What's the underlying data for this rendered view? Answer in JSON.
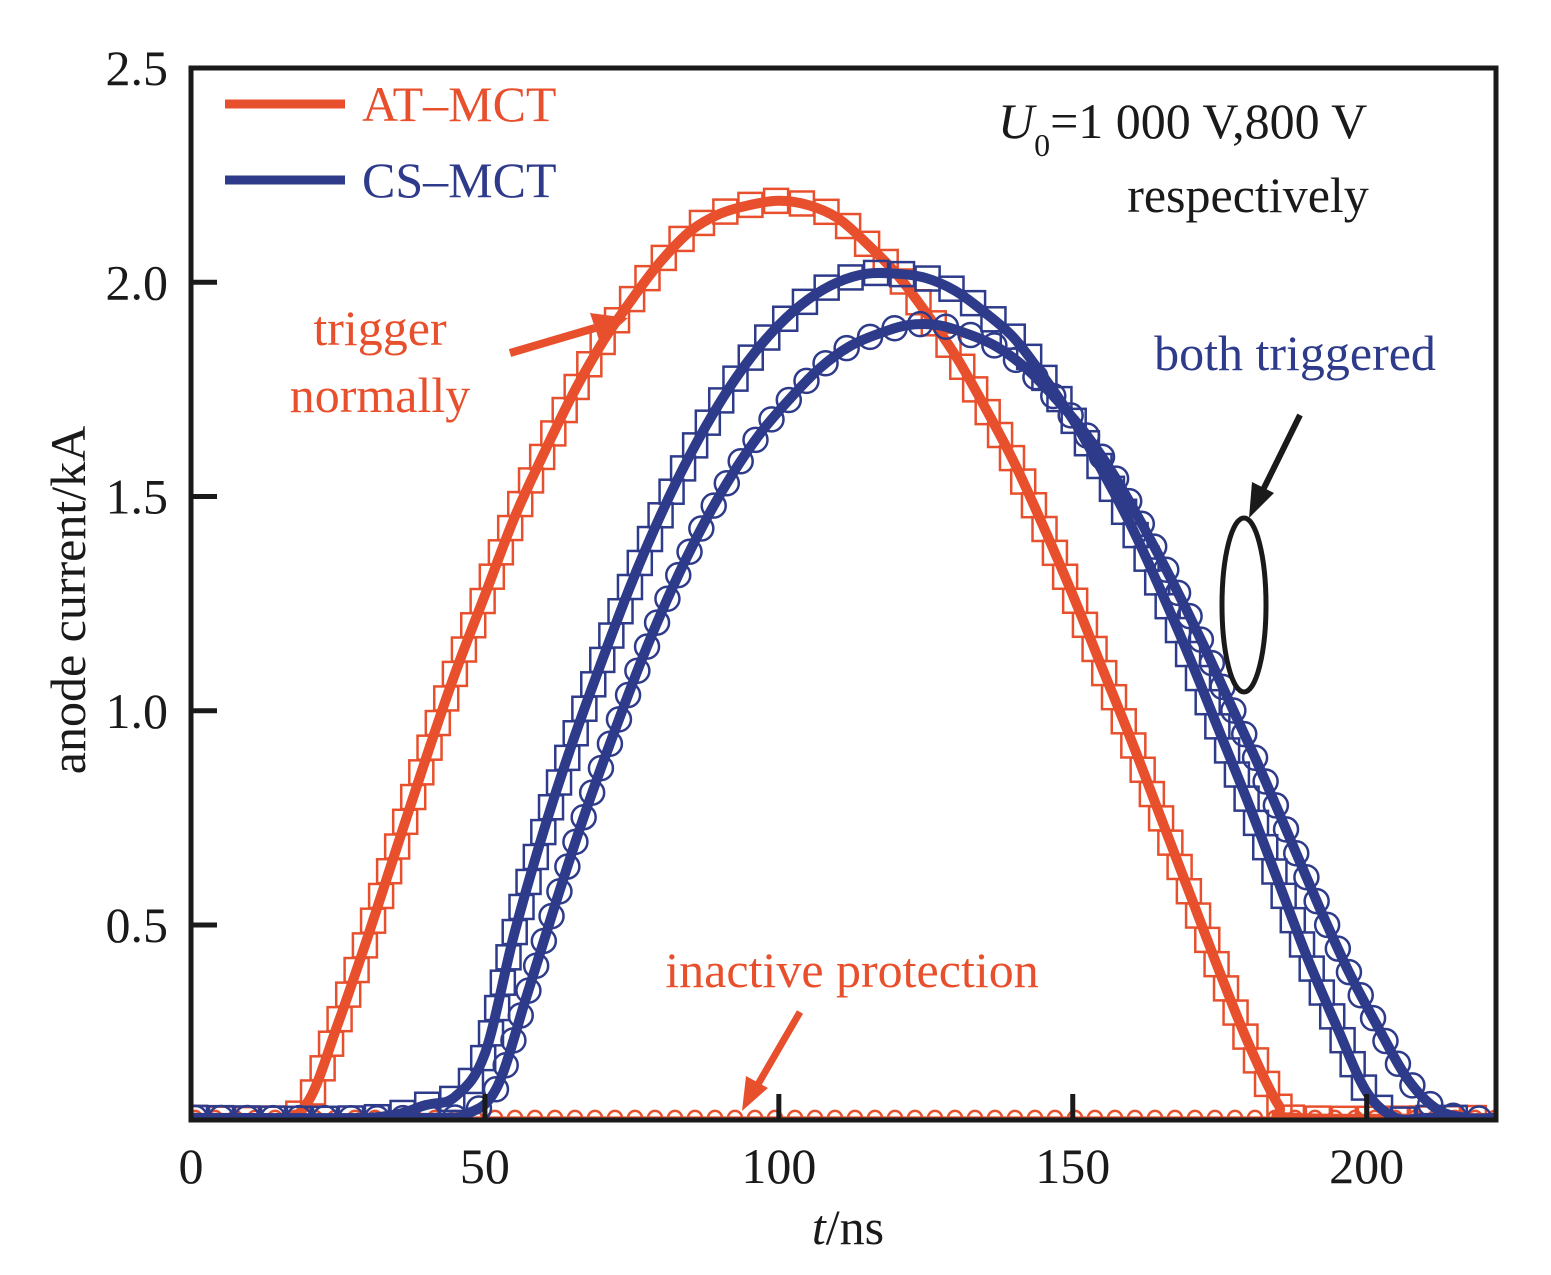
{
  "chart_data": {
    "type": "line",
    "xlabel_italic": "t",
    "xlabel_unit": "/ns",
    "ylabel": "anode current/kA",
    "xlim": [
      0,
      222
    ],
    "ylim": [
      0.045,
      2.5
    ],
    "xticks": [
      0,
      50,
      100,
      150,
      200
    ],
    "yticks": [
      0.5,
      1.0,
      1.5,
      2.0,
      2.5
    ],
    "ytick_labels": [
      "0.5",
      "1.0",
      "1.5",
      "2.0",
      "2.5"
    ],
    "legend": [
      {
        "label": "AT–MCT",
        "color": "#e8502d"
      },
      {
        "label": "CS–MCT",
        "color": "#2e3b8a"
      }
    ],
    "condition": {
      "var": "U",
      "sub": "0",
      "text": "=1 000 V,800 V",
      "line2": "respectively"
    },
    "annotations": {
      "trigger": [
        "trigger",
        "normally"
      ],
      "both": "both triggered",
      "inactive": "inactive protection"
    },
    "series": [
      {
        "name": "AT–MCT",
        "color": "#e8502d",
        "marker": "square",
        "x": [
          0,
          15,
          20,
          25,
          30,
          35,
          40,
          45,
          50,
          55,
          60,
          65,
          70,
          75,
          80,
          85,
          90,
          95,
          100,
          105,
          110,
          115,
          120,
          125,
          130,
          135,
          140,
          145,
          150,
          155,
          160,
          165,
          170,
          175,
          180,
          185,
          188,
          222
        ],
        "y": [
          0.05,
          0.05,
          0.09,
          0.27,
          0.47,
          0.68,
          0.89,
          1.09,
          1.27,
          1.45,
          1.6,
          1.74,
          1.86,
          1.96,
          2.05,
          2.12,
          2.16,
          2.18,
          2.19,
          2.18,
          2.15,
          2.09,
          2.02,
          1.93,
          1.83,
          1.71,
          1.58,
          1.43,
          1.27,
          1.1,
          0.93,
          0.75,
          0.57,
          0.39,
          0.22,
          0.08,
          0.05,
          0.05
        ]
      },
      {
        "name": "inactive protection",
        "color": "#e8502d",
        "marker": "circle",
        "x": [
          0,
          222
        ],
        "y": [
          0.05,
          0.05
        ]
      },
      {
        "name": "",
        "color": "#2e3b8a",
        "marker": "square",
        "x": [
          0,
          30,
          40,
          45,
          50,
          55,
          60,
          65,
          70,
          75,
          80,
          85,
          90,
          95,
          100,
          105,
          110,
          115,
          120,
          125,
          130,
          135,
          140,
          145,
          150,
          155,
          160,
          165,
          170,
          175,
          180,
          185,
          190,
          195,
          200,
          205,
          210,
          215
        ],
        "y": [
          0.05,
          0.05,
          0.08,
          0.1,
          0.2,
          0.48,
          0.72,
          0.93,
          1.12,
          1.3,
          1.46,
          1.6,
          1.72,
          1.82,
          1.9,
          1.96,
          2.0,
          2.02,
          2.02,
          2.01,
          1.98,
          1.93,
          1.87,
          1.78,
          1.68,
          1.56,
          1.43,
          1.28,
          1.12,
          0.95,
          0.78,
          0.6,
          0.42,
          0.26,
          0.11,
          0.05,
          0.05,
          0.05
        ]
      },
      {
        "name": "",
        "color": "#2e3b8a",
        "marker": "circle",
        "x": [
          0,
          40,
          47,
          52,
          57,
          62,
          67,
          72,
          77,
          82,
          87,
          92,
          97,
          102,
          107,
          112,
          117,
          122,
          127,
          132,
          137,
          142,
          147,
          152,
          157,
          162,
          167,
          172,
          177,
          182,
          187,
          192,
          197,
          202,
          207,
          212,
          217,
          222
        ],
        "y": [
          0.05,
          0.05,
          0.06,
          0.12,
          0.33,
          0.55,
          0.76,
          0.95,
          1.13,
          1.29,
          1.43,
          1.55,
          1.65,
          1.73,
          1.8,
          1.85,
          1.88,
          1.9,
          1.9,
          1.88,
          1.85,
          1.8,
          1.73,
          1.65,
          1.55,
          1.43,
          1.3,
          1.16,
          1.01,
          0.86,
          0.7,
          0.54,
          0.39,
          0.26,
          0.14,
          0.07,
          0.05,
          0.05
        ]
      }
    ]
  }
}
